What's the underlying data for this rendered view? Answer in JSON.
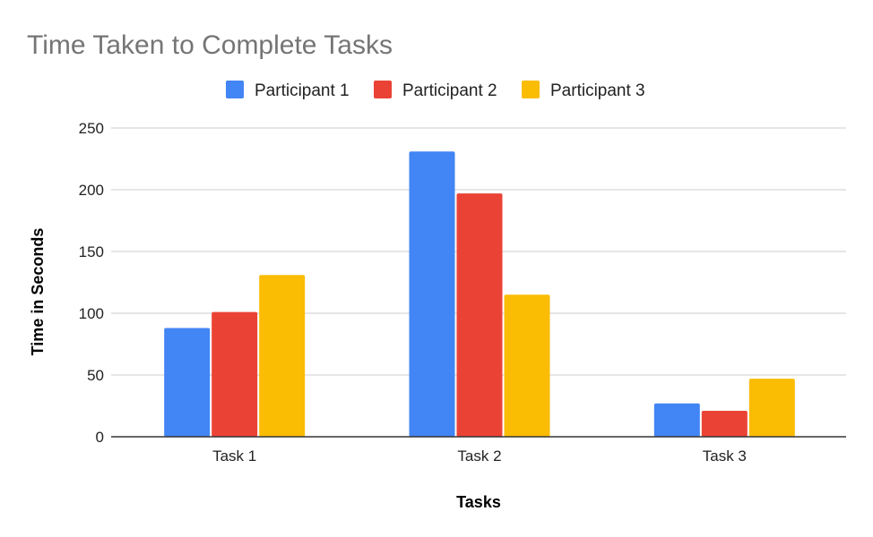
{
  "chart_data": {
    "type": "bar",
    "title": "Time Taken to Complete Tasks",
    "xlabel": "Tasks",
    "ylabel": "Time in Seconds",
    "categories": [
      "Task 1",
      "Task 2",
      "Task 3"
    ],
    "series": [
      {
        "name": "Participant 1",
        "color": "#4285F4",
        "values": [
          88,
          231,
          27
        ]
      },
      {
        "name": "Participant 2",
        "color": "#EA4335",
        "values": [
          101,
          197,
          21
        ]
      },
      {
        "name": "Participant 3",
        "color": "#FBBC04",
        "values": [
          131,
          115,
          47
        ]
      }
    ],
    "ylim": [
      0,
      250
    ],
    "yticks": [
      0,
      50,
      100,
      150,
      200,
      250
    ],
    "ytick_labels": [
      "0",
      "50",
      "100",
      "150",
      "200",
      "250"
    ],
    "grid": true,
    "legend_position": "top"
  }
}
